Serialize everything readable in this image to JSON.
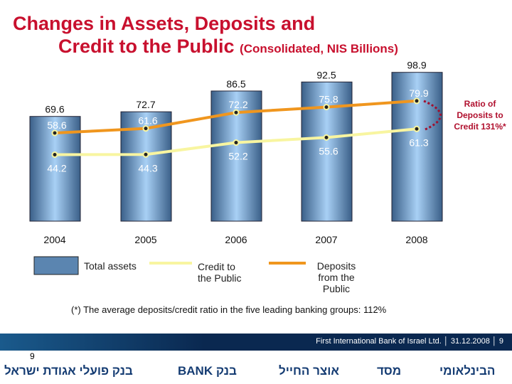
{
  "title": {
    "line1": "Changes in Assets, Deposits and",
    "line2": "Credit to the Public",
    "suffix": "(Consolidated, NIS Billions)"
  },
  "chart_data": {
    "type": "bar",
    "categories": [
      "2004",
      "2005",
      "2006",
      "2007",
      "2008"
    ],
    "series": [
      {
        "name": "Total assets",
        "type": "bar",
        "values": [
          69.6,
          72.7,
          86.5,
          92.5,
          98.9
        ],
        "labels": [
          "69.6",
          "72.7",
          "86.5",
          "92.5",
          "98.9"
        ]
      },
      {
        "name": "Deposits from the Public",
        "type": "line",
        "color": "#f0961e",
        "values": [
          58.6,
          61.6,
          72.2,
          75.8,
          79.9
        ],
        "labels": [
          "58.6",
          "61.6",
          "72.2",
          "75.8",
          "79.9"
        ]
      },
      {
        "name": "Credit to the Public",
        "type": "line",
        "color": "#f8f5a0",
        "values": [
          44.2,
          44.3,
          52.2,
          55.6,
          61.3
        ],
        "labels": [
          "44.2",
          "44.3",
          "52.2",
          "55.6",
          "61.3"
        ]
      }
    ],
    "annotation": "Ratio of Deposits to Credit 131%*"
  },
  "legend": {
    "assets": "Total assets",
    "credit": "Credit to the Public",
    "deposits": "Deposits from the Public"
  },
  "note": "(*) The average deposits/credit ratio in the five leading banking groups: 112%",
  "footer": {
    "text": "First International Bank of Israel Ltd. │ 31.12.2008 │ 9",
    "page": "9",
    "logos": [
      "בנק פועלי אגודת ישראל",
      "BANK בנק",
      "אוצר החייל",
      "מסד",
      "הבינלאומי"
    ]
  }
}
